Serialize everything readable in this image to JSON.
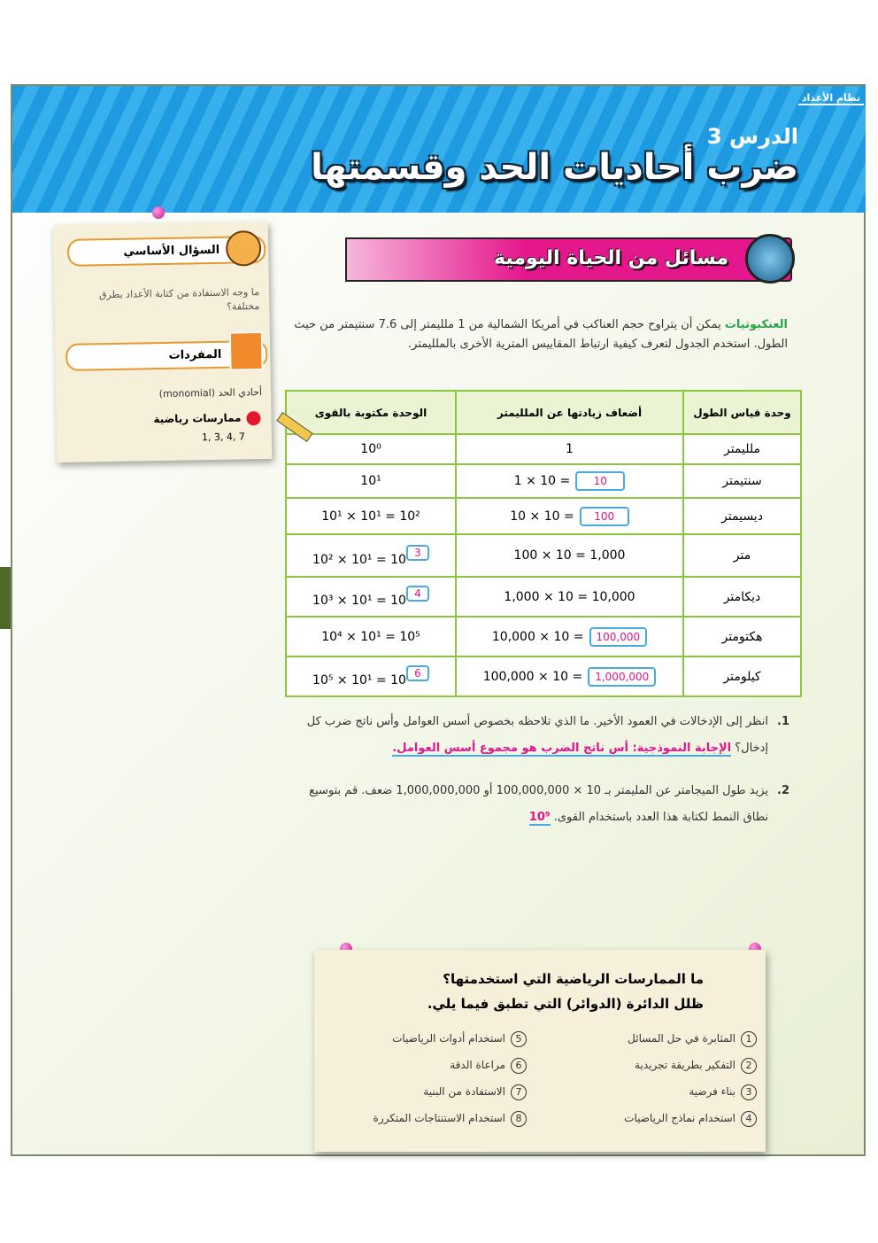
{
  "header": {
    "section": "نظام الأعداد",
    "lesson": "الدرس 3",
    "title": "ضرب أحاديات الحد وقسمتها"
  },
  "sidebar": {
    "essential_question_label": "السؤال الأساسي",
    "essential_question": "ما وجه الاستفادة من كتابة الأعداد بطرق مختلفة؟",
    "vocabulary_label": "المفردات",
    "vocabulary": "أحادي الحد (monomial)",
    "practices_label": "ممارسات رياضية",
    "practices": "1, 3, 4, 7"
  },
  "banner": "مسائل من الحياة اليومية",
  "intro": {
    "topic": "العنكبوتيات",
    "text": "يمكن أن يتراوح حجم العناكب في أمريكا الشمالية من 1 ملليمتر إلى 7.6 سنتيمتر من حيث الطول. استخدم الجدول لتعرف كيفية ارتباط المقاييس المترية الأخرى بالملليمتر."
  },
  "table": {
    "headers": [
      "وحدة قياس الطول",
      "أضعاف زيادتها عن الملليمتر",
      "الوحدة مكتوبة بالقوى"
    ],
    "rows": [
      [
        {
          "text": "ملليمتر"
        },
        {
          "text": "1"
        },
        {
          "text": "10⁰"
        }
      ],
      [
        {
          "text": "سنتيمتر"
        },
        {
          "text": "1 × 10 =",
          "answer": "10"
        },
        {
          "text": "10¹"
        }
      ],
      [
        {
          "text": "ديسيمتر"
        },
        {
          "text": "10 × 10 =",
          "answer": "100"
        },
        {
          "text": "10¹ × 10¹ = 10²"
        }
      ],
      [
        {
          "text": "متر"
        },
        {
          "text": "100 × 10 = 1,000"
        },
        {
          "text": "10² × 10¹ = 10",
          "answer": "3"
        }
      ],
      [
        {
          "text": "ديكامتر"
        },
        {
          "text": "1,000 × 10 = 10,000"
        },
        {
          "text": "10³ × 10¹ = 10",
          "answer": "4"
        }
      ],
      [
        {
          "text": "هكتومتر"
        },
        {
          "text": "10,000 × 10 =",
          "answer": "100,000"
        },
        {
          "text": "10⁴ × 10¹ = 10⁵"
        }
      ],
      [
        {
          "text": "كيلومتر"
        },
        {
          "text": "100,000 × 10 =",
          "answer": "1,000,000"
        },
        {
          "text": "10⁵ × 10¹ = 10",
          "answer": "6"
        }
      ]
    ]
  },
  "questions": [
    {
      "number": "1.",
      "text": "انظر إلى الإدخالات في العمود الأخير. ما الذي تلاحظه بخصوص أسس العوامل وأس ناتج ضرب كل إدخال؟",
      "answer": "الإجابة النموذجية: أس ناتج الضرب هو مجموع أسس العوامل."
    },
    {
      "number": "2.",
      "text": "يزيد طول الميجامتر عن المليمتر بـ 10 × 100,000,000 أو 1,000,000,000 ضعف. قم بتوسيع نطاق النمط لكتابة هذا العدد باستخدام القوى.",
      "answer": "10⁹"
    }
  ],
  "practices": {
    "title": "ما الممارسات الرياضية التي استخدمتها؟",
    "instruction": "ظلل الدائرة (الدوائر) التي تطبق فيما يلي.",
    "items": [
      {
        "number": "1",
        "text": "المثابرة في حل المسائل"
      },
      {
        "number": "2",
        "text": "التفكير بطريقة تجريدية"
      },
      {
        "number": "3",
        "text": "بناء فرضية"
      },
      {
        "number": "4",
        "text": "استخدام نماذج الرياضيات"
      },
      {
        "number": "5",
        "text": "استخدام أدوات الرياضيات"
      },
      {
        "number": "6",
        "text": "مراعاة الدقة"
      },
      {
        "number": "7",
        "text": "الاستفادة من البنية"
      },
      {
        "number": "8",
        "text": "استخدام الاستنتاجات المتكررة"
      }
    ]
  }
}
